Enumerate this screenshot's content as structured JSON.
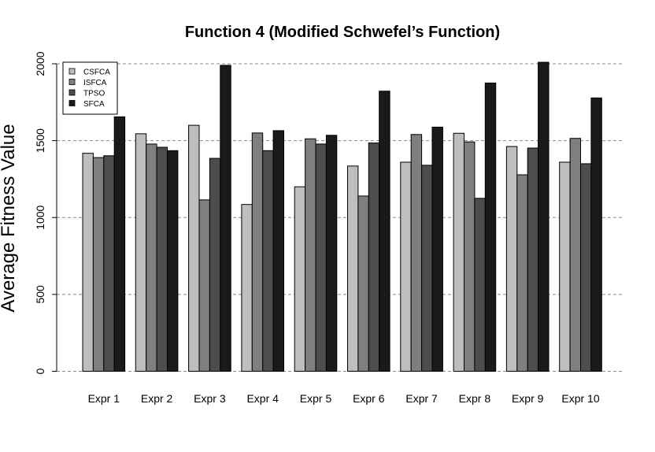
{
  "chart_data": {
    "type": "bar",
    "title": "Function 4 (Modified Schwefel’s Function)",
    "xlabel": "",
    "ylabel": "Average Fitness Value",
    "ylim": [
      0,
      2000
    ],
    "yticks": [
      "0",
      "500",
      "1000",
      "1500",
      "2000"
    ],
    "grid": "horizontal dashed",
    "legend_position": "top-left",
    "categories": [
      "Expr 1",
      "Expr 2",
      "Expr 3",
      "Expr 4",
      "Expr 5",
      "Expr 6",
      "Expr 7",
      "Expr 8",
      "Expr 9",
      "Expr 10"
    ],
    "series": [
      {
        "name": "CSFCA",
        "color": "#bebebe",
        "values": [
          1418,
          1545,
          1600,
          1085,
          1200,
          1335,
          1360,
          1548,
          1462,
          1360
        ]
      },
      {
        "name": "ISFCA",
        "color": "#7f7f7f",
        "values": [
          1390,
          1478,
          1115,
          1550,
          1512,
          1140,
          1540,
          1492,
          1278,
          1515
        ]
      },
      {
        "name": "TPSO",
        "color": "#4d4d4d",
        "values": [
          1402,
          1457,
          1385,
          1435,
          1478,
          1485,
          1340,
          1125,
          1452,
          1350
        ]
      },
      {
        "name": "SFCA",
        "color": "#1a1a1a",
        "values": [
          1655,
          1435,
          1990,
          1565,
          1535,
          1822,
          1588,
          1875,
          2010,
          1778
        ]
      }
    ]
  }
}
